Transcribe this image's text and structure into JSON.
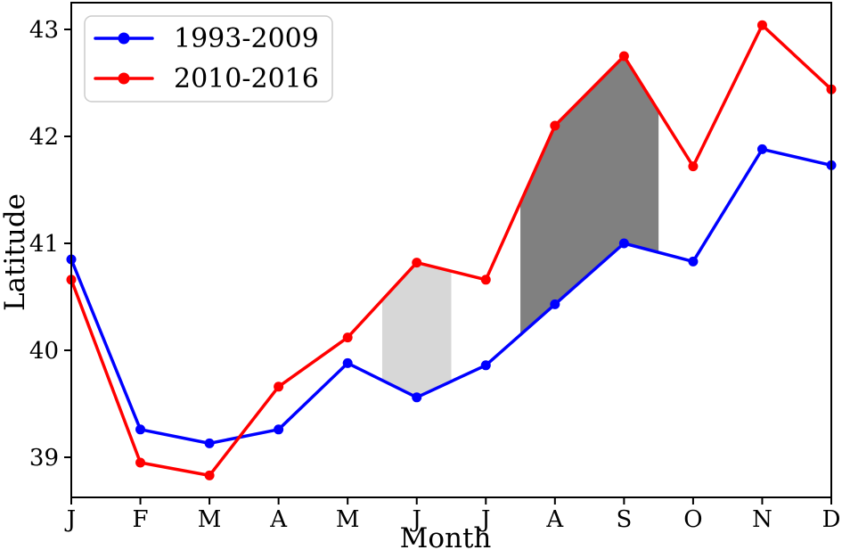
{
  "chart_data": {
    "type": "line",
    "title": "",
    "xlabel": "Month",
    "ylabel": "Latitude",
    "categories": [
      "J",
      "F",
      "M",
      "A",
      "M",
      "J",
      "J",
      "A",
      "S",
      "O",
      "N",
      "D"
    ],
    "series": [
      {
        "name": "1993-2009",
        "color": "#0000ff",
        "values": [
          40.85,
          39.26,
          39.13,
          39.26,
          39.88,
          39.56,
          39.86,
          40.43,
          41.0,
          40.83,
          41.88,
          41.73
        ]
      },
      {
        "name": "2010-2016",
        "color": "#ff0000",
        "values": [
          40.66,
          38.95,
          38.83,
          39.66,
          40.12,
          40.82,
          40.66,
          42.1,
          42.75,
          41.72,
          43.04,
          42.44
        ]
      }
    ],
    "yticks": [
      39,
      40,
      41,
      42,
      43
    ],
    "ylim": [
      38.625,
      43.25
    ],
    "xlim": [
      0,
      11
    ],
    "grid": false,
    "legend_position": "upper-left",
    "shaded_regions": [
      {
        "x_start": 4.5,
        "x_end": 5.5,
        "upper_series": "2010-2016",
        "lower_series": "1993-2009",
        "color": "#d7d7d7"
      },
      {
        "x_start": 6.5,
        "x_end": 8.5,
        "upper_series": "2010-2016",
        "lower_series": "1993-2009",
        "color": "#808080"
      }
    ],
    "colors": {
      "axis": "#000000",
      "legend_border": "#cccccc",
      "background": "#ffffff"
    }
  }
}
